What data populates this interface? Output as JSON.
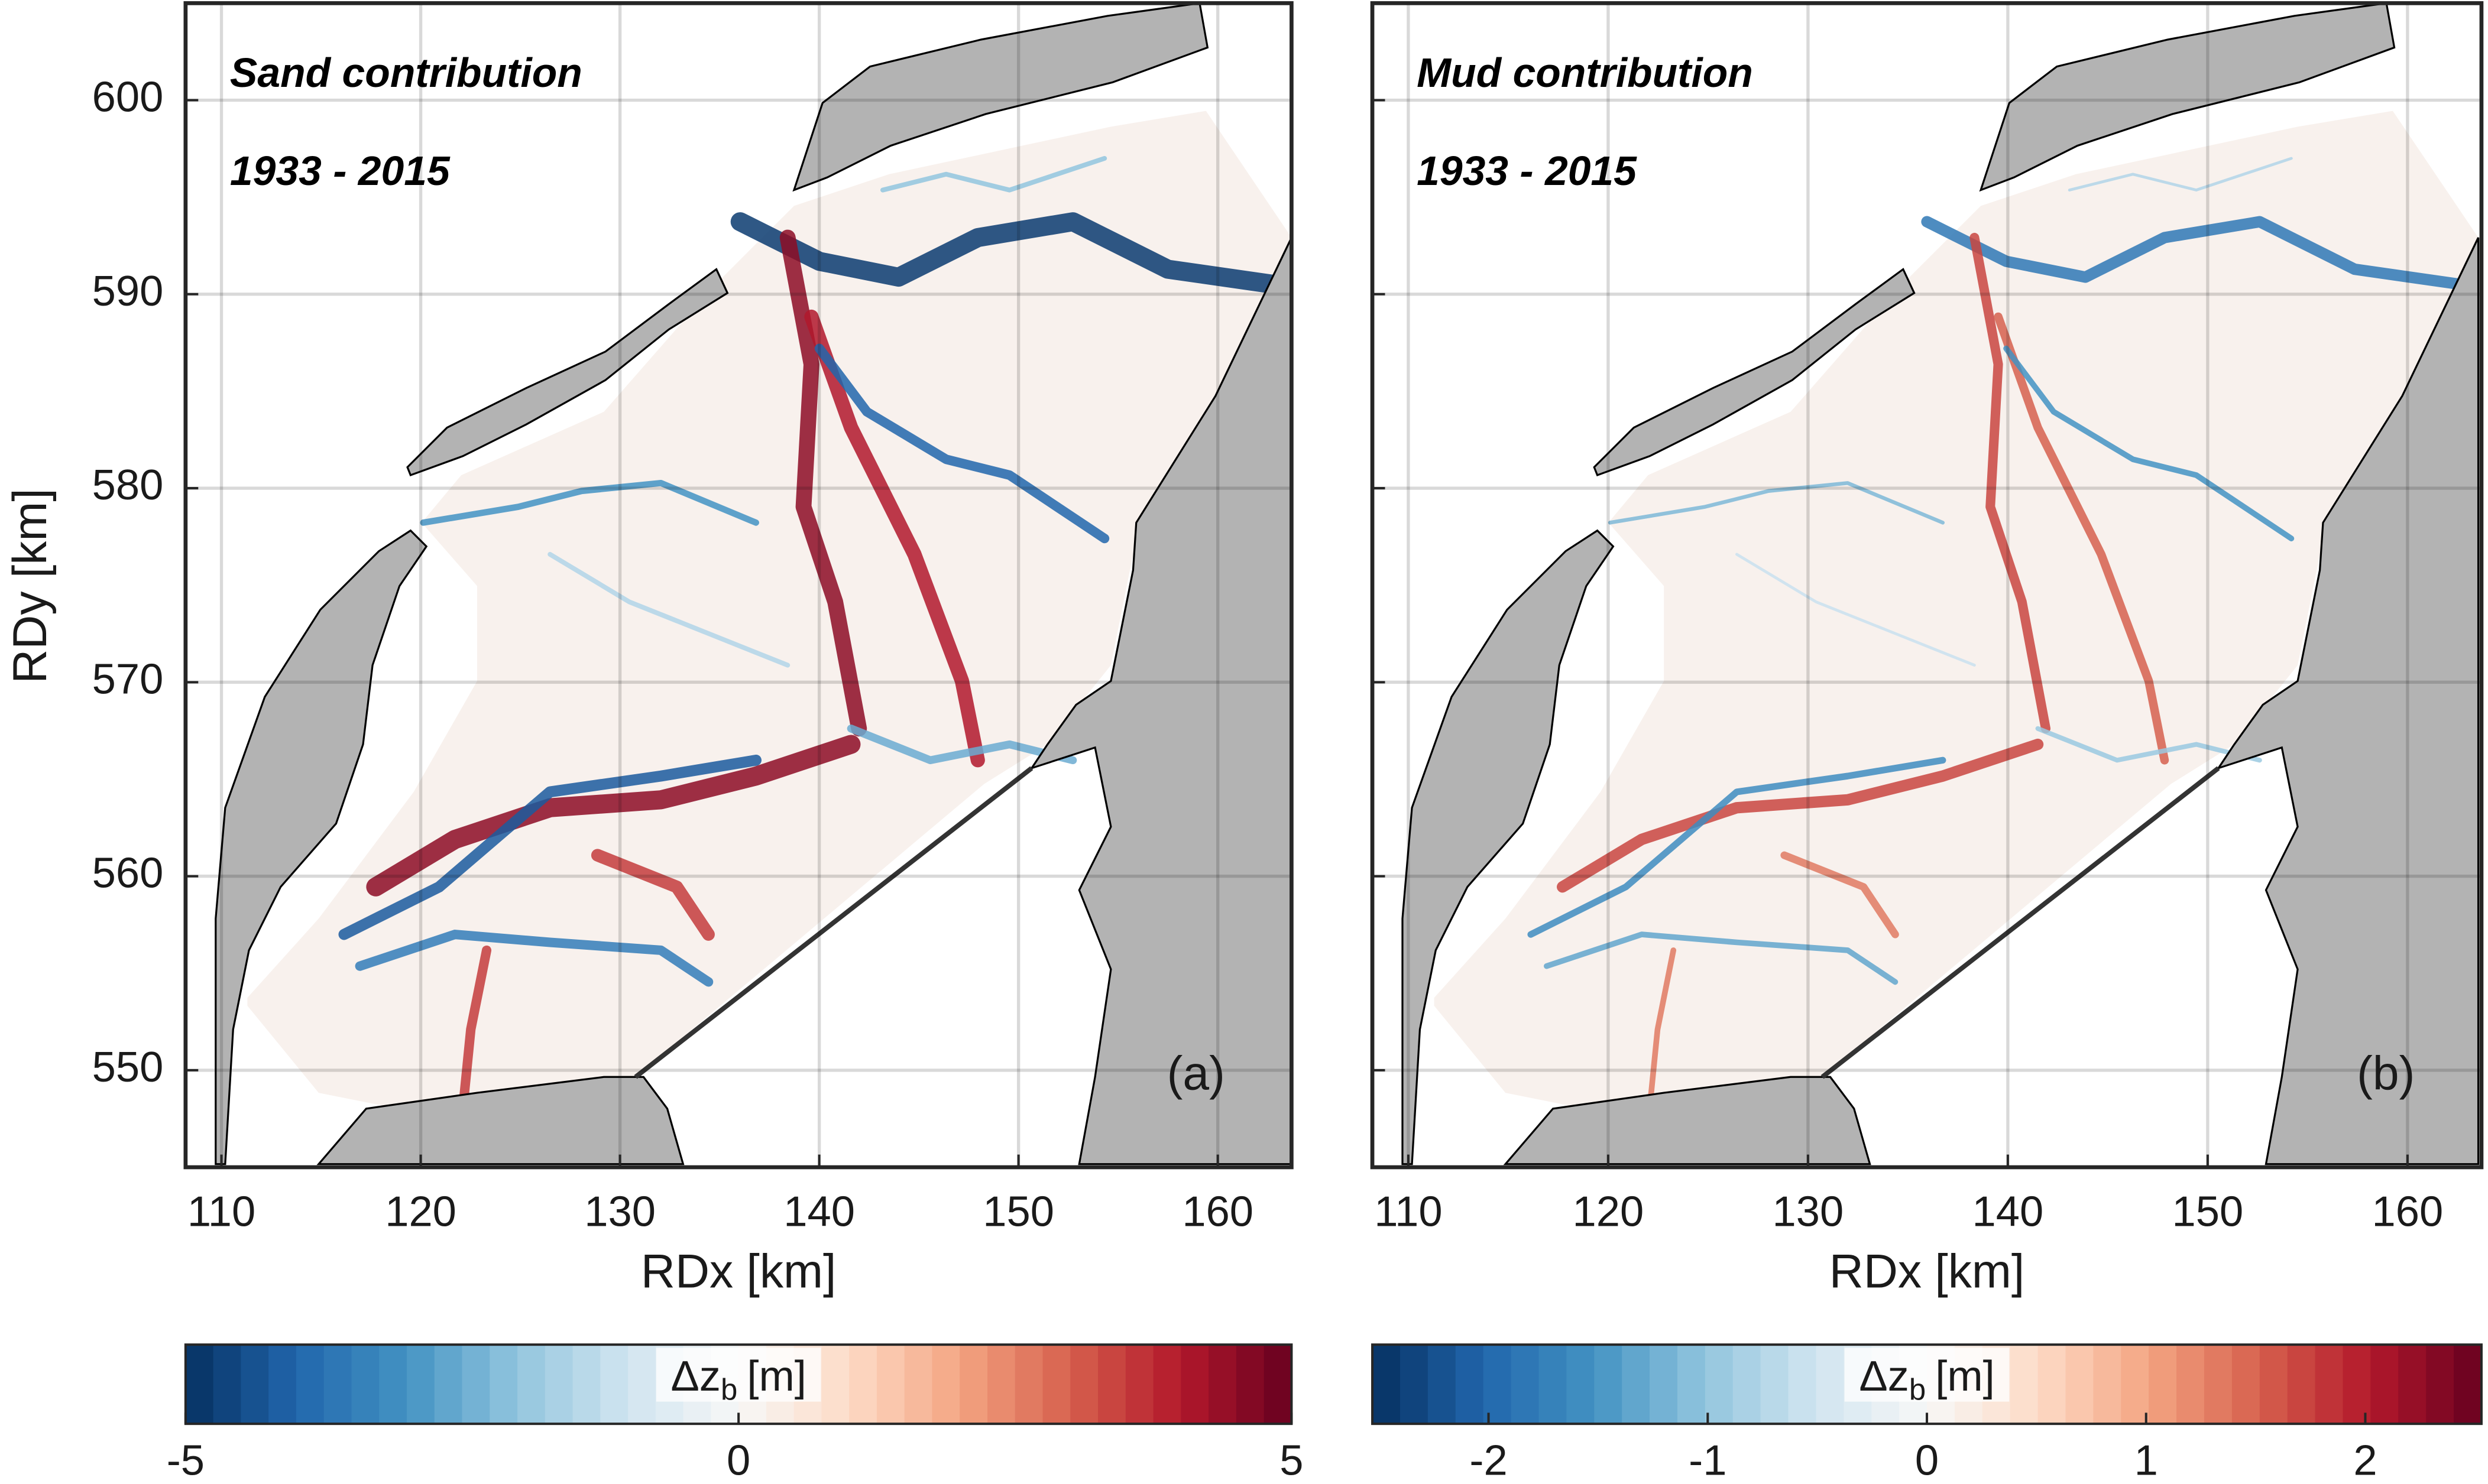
{
  "chart_data": [
    {
      "type": "map",
      "title": "Sand contribution",
      "period": "1933 - 2015",
      "panel_label": "(a)",
      "xlabel": "RDx [km]",
      "ylabel": "RDy [km]",
      "xlim": [
        108.2,
        163.7
      ],
      "ylim": [
        545,
        605
      ],
      "xticks": [
        110,
        120,
        130,
        140,
        150,
        160
      ],
      "yticks": [
        550,
        560,
        570,
        580,
        590,
        600
      ],
      "show_ytick_labels": true,
      "grid": true,
      "land_color": "#b3b3b3",
      "colorbar": {
        "label_symbol": "Δz",
        "label_subscript": "b",
        "label_unit": "[m]",
        "lim": [
          -5,
          5
        ],
        "ticks": [
          -5,
          0,
          5
        ]
      }
    },
    {
      "type": "map",
      "title": "Mud contribution",
      "period": "1933 - 2015",
      "panel_label": "(b)",
      "xlabel": "RDx [km]",
      "xlim": [
        108.2,
        163.7
      ],
      "ylim": [
        545,
        605
      ],
      "xticks": [
        110,
        120,
        130,
        140,
        150,
        160
      ],
      "yticks": [
        550,
        560,
        570,
        580,
        590,
        600
      ],
      "show_ytick_labels": false,
      "grid": true,
      "land_color": "#b3b3b3",
      "colorbar": {
        "label_symbol": "Δz",
        "label_subscript": "b",
        "label_unit": "[m]",
        "lim": [
          -2.53,
          2.53
        ],
        "ticks": [
          -2,
          -1,
          0,
          1,
          2
        ]
      }
    }
  ]
}
